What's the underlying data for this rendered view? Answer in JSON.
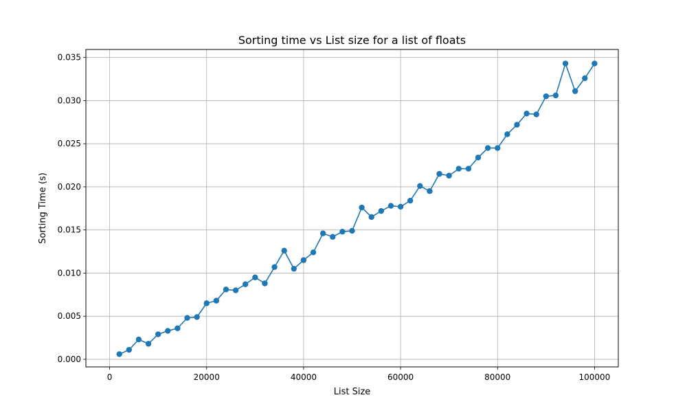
{
  "chart_data": {
    "type": "line",
    "title": "Sorting time vs List size for a list of floats",
    "xlabel": "List Size",
    "ylabel": "Sorting Time (s)",
    "xlim": [
      -4900,
      104900
    ],
    "ylim": [
      -0.00088,
      0.03593
    ],
    "xticks": [
      0,
      20000,
      40000,
      60000,
      80000,
      100000
    ],
    "xtick_labels": [
      "0",
      "20000",
      "40000",
      "60000",
      "80000",
      "100000"
    ],
    "yticks": [
      0.0,
      0.005,
      0.01,
      0.015,
      0.02,
      0.025,
      0.03,
      0.035
    ],
    "ytick_labels": [
      "0.000",
      "0.005",
      "0.010",
      "0.015",
      "0.020",
      "0.025",
      "0.030",
      "0.035"
    ],
    "grid": true,
    "line_color": "#1f77b4",
    "marker": "circle",
    "series": [
      {
        "x": [
          2000,
          4000,
          6000,
          8000,
          10000,
          12000,
          14000,
          16000,
          18000,
          20000,
          22000,
          24000,
          26000,
          28000,
          30000,
          32000,
          34000,
          36000,
          38000,
          40000,
          42000,
          44000,
          46000,
          48000,
          50000,
          52000,
          54000,
          56000,
          58000,
          60000,
          62000,
          64000,
          66000,
          68000,
          70000,
          72000,
          74000,
          76000,
          78000,
          80000,
          82000,
          84000,
          86000,
          88000,
          90000,
          92000,
          94000,
          96000,
          98000,
          100000
        ],
        "y": [
          0.0006,
          0.0011,
          0.0023,
          0.0018,
          0.0029,
          0.0033,
          0.0036,
          0.0048,
          0.0049,
          0.0065,
          0.0068,
          0.0081,
          0.008,
          0.0087,
          0.0095,
          0.0088,
          0.0107,
          0.0126,
          0.0105,
          0.0115,
          0.0124,
          0.0146,
          0.0142,
          0.0148,
          0.0149,
          0.0176,
          0.0165,
          0.0172,
          0.0178,
          0.0177,
          0.0184,
          0.0201,
          0.0195,
          0.0215,
          0.0213,
          0.0221,
          0.0221,
          0.0234,
          0.0245,
          0.0245,
          0.0261,
          0.0272,
          0.0285,
          0.0284,
          0.0305,
          0.0306,
          0.0343,
          0.0311,
          0.0326,
          0.0343
        ]
      }
    ]
  }
}
